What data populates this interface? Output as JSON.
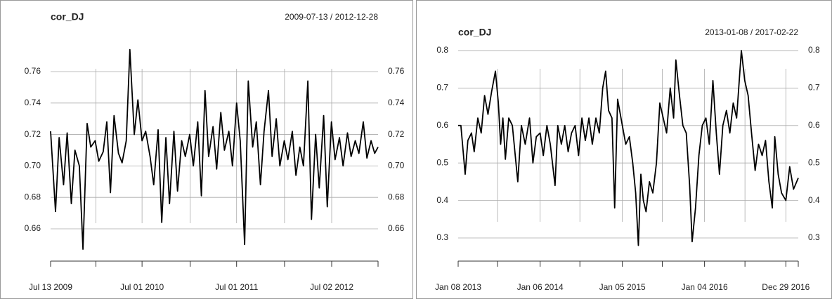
{
  "chart_data": [
    {
      "type": "line",
      "title": "cor_DJ",
      "subtitle": "2009-07-13 / 2012-12-28",
      "x": [
        "2009-07-13",
        "2009-08-01",
        "2009-08-15",
        "2009-09-01",
        "2009-09-15",
        "2009-10-01",
        "2009-10-15",
        "2009-11-01",
        "2009-11-15",
        "2009-12-01",
        "2009-12-15",
        "2010-01-01",
        "2010-01-15",
        "2010-02-01",
        "2010-02-15",
        "2010-03-01",
        "2010-03-15",
        "2010-04-01",
        "2010-04-15",
        "2010-05-01",
        "2010-05-15",
        "2010-06-01",
        "2010-06-15",
        "2010-07-01",
        "2010-07-15",
        "2010-08-01",
        "2010-08-15",
        "2010-09-01",
        "2010-09-15",
        "2010-10-01",
        "2010-10-15",
        "2010-11-01",
        "2010-11-15",
        "2010-12-01",
        "2010-12-15",
        "2011-01-01",
        "2011-01-15",
        "2011-02-01",
        "2011-02-15",
        "2011-03-01",
        "2011-03-15",
        "2011-04-01",
        "2011-04-15",
        "2011-05-01",
        "2011-05-15",
        "2011-06-01",
        "2011-06-15",
        "2011-07-01",
        "2011-07-15",
        "2011-08-01",
        "2011-08-15",
        "2011-09-01",
        "2011-09-15",
        "2011-10-01",
        "2011-10-15",
        "2011-11-01",
        "2011-11-15",
        "2011-12-01",
        "2011-12-15",
        "2012-01-01",
        "2012-01-15",
        "2012-02-01",
        "2012-02-15",
        "2012-03-01",
        "2012-03-15",
        "2012-04-01",
        "2012-04-15",
        "2012-05-01",
        "2012-05-15",
        "2012-06-01",
        "2012-06-15",
        "2012-07-01",
        "2012-07-15",
        "2012-08-01",
        "2012-08-15",
        "2012-09-01",
        "2012-09-15",
        "2012-10-01",
        "2012-10-15",
        "2012-11-01",
        "2012-11-15",
        "2012-12-01",
        "2012-12-15",
        "2012-12-28"
      ],
      "series": [
        {
          "color": "#000000",
          "values": [
            0.722,
            0.671,
            0.718,
            0.688,
            0.721,
            0.676,
            0.71,
            0.7,
            0.647,
            0.727,
            0.712,
            0.716,
            0.703,
            0.709,
            0.728,
            0.683,
            0.732,
            0.708,
            0.702,
            0.716,
            0.774,
            0.72,
            0.742,
            0.716,
            0.722,
            0.706,
            0.688,
            0.723,
            0.664,
            0.718,
            0.676,
            0.722,
            0.684,
            0.716,
            0.706,
            0.72,
            0.7,
            0.728,
            0.681,
            0.748,
            0.706,
            0.725,
            0.698,
            0.734,
            0.71,
            0.722,
            0.7,
            0.74,
            0.716,
            0.65,
            0.754,
            0.712,
            0.728,
            0.688,
            0.722,
            0.748,
            0.706,
            0.73,
            0.7,
            0.716,
            0.704,
            0.722,
            0.694,
            0.712,
            0.7,
            0.754,
            0.666,
            0.72,
            0.686,
            0.732,
            0.674,
            0.728,
            0.704,
            0.718,
            0.7,
            0.721,
            0.706,
            0.716,
            0.708,
            0.728,
            0.705,
            0.716,
            0.708,
            0.712
          ]
        }
      ],
      "xlim": [
        "2009-07-13",
        "2012-12-28"
      ],
      "ylim": [
        0.644,
        0.775
      ],
      "yticks": [
        0.66,
        0.68,
        {
          "value": 0.7,
          "label": "0.70"
        },
        0.72,
        0.74,
        0.76
      ],
      "xticks": [
        {
          "value": "2009-07-13",
          "label": "Jul 13 2009"
        },
        {
          "value": "2010-01-04",
          "label": null
        },
        {
          "value": "2010-07-01",
          "label": "Jul 01 2010"
        },
        {
          "value": "2011-01-03",
          "label": null
        },
        {
          "value": "2011-07-01",
          "label": "Jul 01 2011"
        },
        {
          "value": "2012-01-02",
          "label": null
        },
        {
          "value": "2012-07-02",
          "label": "Jul 02 2012"
        },
        {
          "value": "2012-12-28",
          "label": null
        }
      ],
      "grid": true
    },
    {
      "type": "line",
      "title": "cor_DJ",
      "subtitle": "2013-01-08 / 2017-02-22",
      "x": [
        "2013-01-08",
        "2013-01-20",
        "2013-02-08",
        "2013-02-20",
        "2013-03-08",
        "2013-03-20",
        "2013-04-05",
        "2013-04-20",
        "2013-05-05",
        "2013-05-20",
        "2013-06-05",
        "2013-06-22",
        "2013-07-05",
        "2013-07-15",
        "2013-07-25",
        "2013-08-05",
        "2013-08-20",
        "2013-09-05",
        "2013-09-29",
        "2013-10-15",
        "2013-11-01",
        "2013-11-20",
        "2013-12-05",
        "2013-12-20",
        "2014-01-06",
        "2014-01-20",
        "2014-02-05",
        "2014-02-20",
        "2014-03-13",
        "2014-03-25",
        "2014-04-10",
        "2014-04-25",
        "2014-05-10",
        "2014-05-25",
        "2014-06-10",
        "2014-06-25",
        "2014-07-10",
        "2014-07-25",
        "2014-08-10",
        "2014-08-25",
        "2014-09-10",
        "2014-09-25",
        "2014-10-10",
        "2014-10-23",
        "2014-11-05",
        "2014-11-20",
        "2014-12-02",
        "2014-12-15",
        "2015-01-05",
        "2015-01-20",
        "2015-02-05",
        "2015-02-20",
        "2015-03-05",
        "2015-03-17",
        "2015-03-28",
        "2015-04-08",
        "2015-04-20",
        "2015-05-05",
        "2015-05-20",
        "2015-06-05",
        "2015-06-20",
        "2015-07-05",
        "2015-07-20",
        "2015-08-05",
        "2015-08-20",
        "2015-08-30",
        "2015-09-15",
        "2015-09-30",
        "2015-10-15",
        "2015-10-30",
        "2015-11-10",
        "2015-11-25",
        "2015-12-10",
        "2015-12-25",
        "2016-01-10",
        "2016-01-25",
        "2016-02-10",
        "2016-02-25",
        "2016-03-10",
        "2016-03-25",
        "2016-04-10",
        "2016-04-25",
        "2016-05-10",
        "2016-05-25",
        "2016-06-15",
        "2016-06-30",
        "2016-07-15",
        "2016-07-30",
        "2016-08-15",
        "2016-08-30",
        "2016-09-15",
        "2016-09-30",
        "2016-10-15",
        "2016-10-30",
        "2016-11-10",
        "2016-11-25",
        "2016-12-10",
        "2016-12-29",
        "2017-01-15",
        "2017-02-01",
        "2017-02-22"
      ],
      "series": [
        {
          "color": "#000000",
          "values": [
            0.6,
            0.6,
            0.47,
            0.56,
            0.58,
            0.53,
            0.62,
            0.58,
            0.68,
            0.63,
            0.69,
            0.745,
            0.66,
            0.55,
            0.62,
            0.51,
            0.62,
            0.6,
            0.45,
            0.6,
            0.55,
            0.62,
            0.5,
            0.57,
            0.58,
            0.52,
            0.6,
            0.55,
            0.44,
            0.6,
            0.55,
            0.6,
            0.53,
            0.58,
            0.6,
            0.52,
            0.62,
            0.56,
            0.62,
            0.55,
            0.62,
            0.58,
            0.7,
            0.745,
            0.64,
            0.62,
            0.38,
            0.67,
            0.6,
            0.55,
            0.57,
            0.5,
            0.42,
            0.28,
            0.47,
            0.4,
            0.37,
            0.45,
            0.42,
            0.5,
            0.66,
            0.62,
            0.58,
            0.7,
            0.62,
            0.775,
            0.68,
            0.6,
            0.58,
            0.44,
            0.29,
            0.38,
            0.52,
            0.6,
            0.62,
            0.55,
            0.72,
            0.58,
            0.47,
            0.6,
            0.64,
            0.58,
            0.66,
            0.62,
            0.8,
            0.72,
            0.68,
            0.58,
            0.48,
            0.55,
            0.52,
            0.56,
            0.45,
            0.38,
            0.57,
            0.47,
            0.42,
            0.4,
            0.49,
            0.43,
            0.46
          ]
        }
      ],
      "xlim": [
        "2013-01-08",
        "2017-02-22"
      ],
      "ylim": [
        0.27,
        0.81
      ],
      "yticks": [
        0.3,
        0.4,
        0.5,
        0.6,
        0.7,
        0.8
      ],
      "xticks": [
        {
          "value": "2013-01-08",
          "label": "Jan 08 2013"
        },
        {
          "value": "2013-07-01",
          "label": null
        },
        {
          "value": "2014-01-06",
          "label": "Jan 06 2014"
        },
        {
          "value": "2014-07-01",
          "label": null
        },
        {
          "value": "2015-01-05",
          "label": "Jan 05 2015"
        },
        {
          "value": "2015-07-01",
          "label": null
        },
        {
          "value": "2016-01-04",
          "label": "Jan 04 2016"
        },
        {
          "value": "2016-07-01",
          "label": null
        },
        {
          "value": "2016-12-29",
          "label": "Dec 29 2016"
        },
        {
          "value": "2017-02-22",
          "label": null
        }
      ],
      "grid": true
    }
  ]
}
